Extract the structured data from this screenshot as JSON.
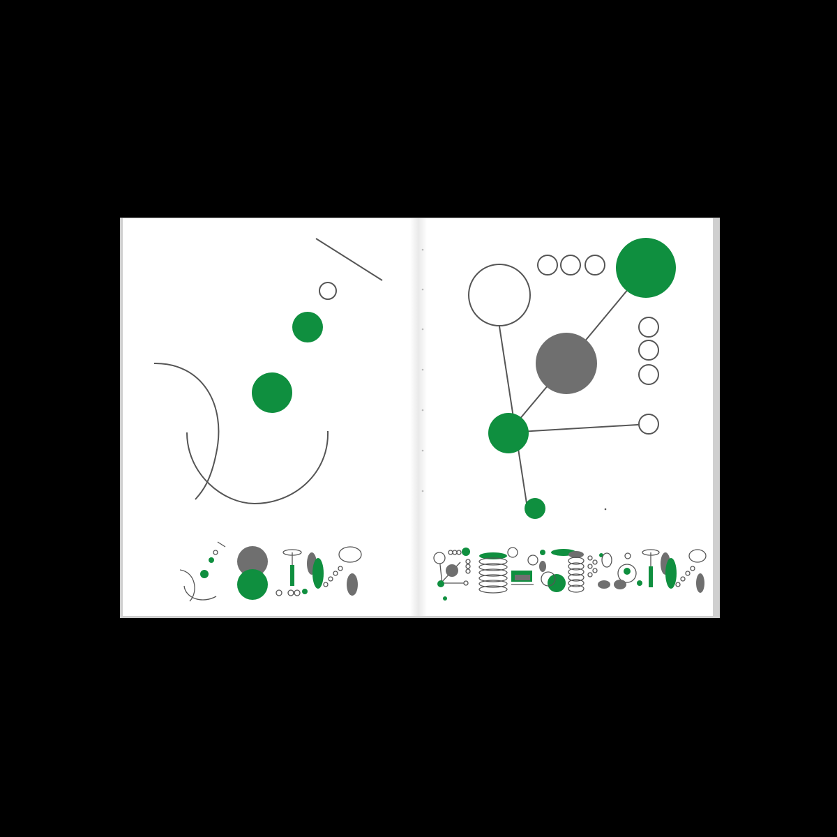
{
  "scene": "open-booklet-spread",
  "colors": {
    "background": "#000000",
    "paper": "#ffffff",
    "gutter": "#e8e8e8",
    "edge": "#cfcfcf",
    "green": "#0f8f3f",
    "gray": "#6f6f6f",
    "stroke": "#555555"
  },
  "pages": [
    {
      "side": "left",
      "motif": "arcs-and-circle-trail"
    },
    {
      "side": "right",
      "motif": "circle-network"
    }
  ]
}
